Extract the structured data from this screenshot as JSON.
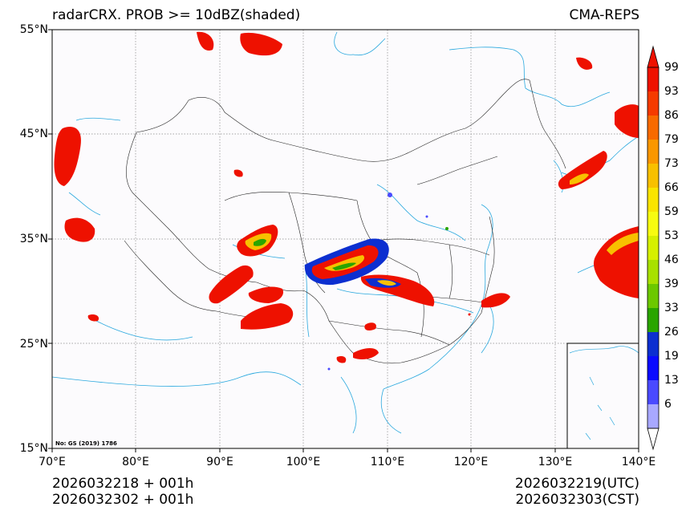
{
  "title": "radarCRX. PROB >= 10dBZ(shaded)",
  "model": "CMA-REPS",
  "lat_labels": [
    "55°N",
    "45°N",
    "35°N",
    "25°N",
    "15°N"
  ],
  "lon_labels": [
    "70°E",
    "80°E",
    "90°E",
    "100°E",
    "110°E",
    "120°E",
    "130°E",
    "140°E"
  ],
  "colorbar": {
    "labels": [
      "99",
      "93",
      "86",
      "79",
      "73",
      "66",
      "59",
      "53",
      "46",
      "39",
      "33",
      "26",
      "19",
      "13",
      "6"
    ],
    "colors": [
      "#ee1100",
      "#f53a00",
      "#f86a00",
      "#f99700",
      "#f8c000",
      "#f9e400",
      "#f7fb10",
      "#d6f000",
      "#a8e000",
      "#6cc800",
      "#2aa500",
      "#0c2fd0",
      "#0a0aff",
      "#4a4aff",
      "#a8a8ff"
    ],
    "max_arrow_color": "#ee1100",
    "min_arrow_color": "#ffffff"
  },
  "map_note": "No: GS (2019) 1786",
  "init_utc": "2026032218  +  001h",
  "init_cst": "2026032302  +  001h",
  "valid_utc": "2026032219(UTC)",
  "valid_cst": "2026032303(CST)"
}
